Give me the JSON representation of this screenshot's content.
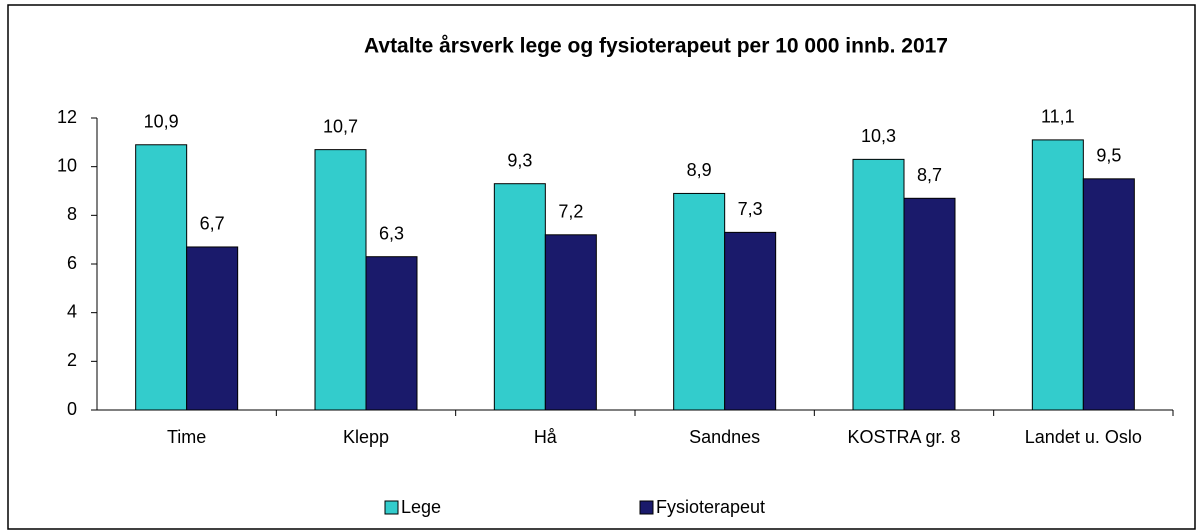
{
  "chart_data": {
    "type": "bar",
    "title": "Avtalte årsverk lege og fysioterapeut  per 10 000 innb. 2017",
    "categories": [
      "Time",
      "Klepp",
      "Hå",
      "Sandnes",
      "KOSTRA gr. 8",
      "Landet u. Oslo"
    ],
    "series": [
      {
        "name": "Lege",
        "color": "#33cccc",
        "values": [
          10.9,
          10.7,
          9.3,
          8.9,
          10.3,
          11.1
        ],
        "value_labels": [
          "10,9",
          "10,7",
          "9,3",
          "8,9",
          "10,3",
          "11,1"
        ]
      },
      {
        "name": "Fysioterapeut",
        "color": "#1a1a6b",
        "values": [
          6.7,
          6.3,
          7.2,
          7.3,
          8.7,
          9.5
        ],
        "value_labels": [
          "6,7",
          "6,3",
          "7,2",
          "7,3",
          "8,7",
          "9,5"
        ]
      }
    ],
    "ylim": [
      0,
      12
    ],
    "yticks": [
      0,
      2,
      4,
      6,
      8,
      10,
      12
    ],
    "legend": "bottom"
  }
}
